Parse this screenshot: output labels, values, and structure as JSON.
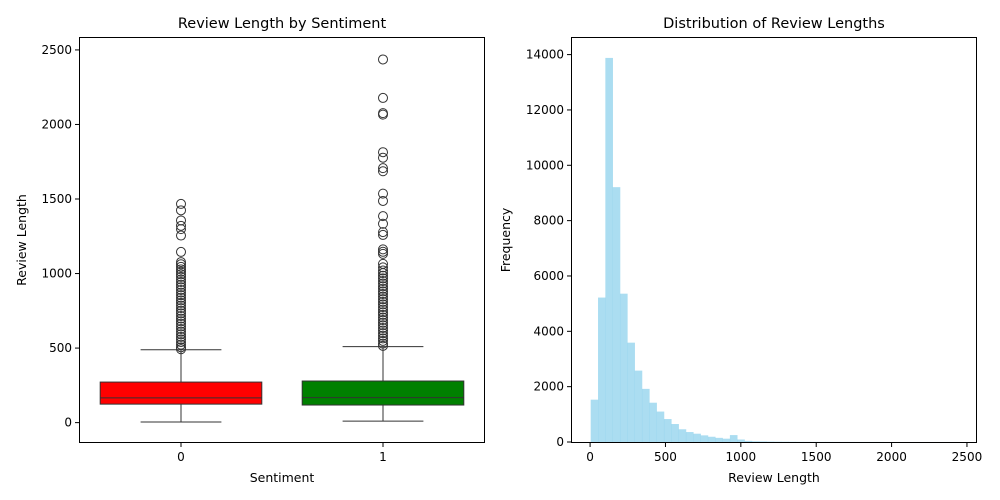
{
  "chart_data": [
    {
      "type": "box",
      "title": "Review Length by Sentiment",
      "xlabel": "Sentiment",
      "ylabel": "Review Length",
      "ylim": [
        -130,
        2580
      ],
      "yticks": [
        0,
        500,
        1000,
        1500,
        2000,
        2500
      ],
      "categories": [
        "0",
        "1"
      ],
      "boxes": [
        {
          "category": "0",
          "color": "#ff0000",
          "whisker_low": 4,
          "q1": 124,
          "median": 166,
          "q3": 272,
          "whisker_high": 489,
          "outliers": [
            1467,
            1424,
            1356,
            1320,
            1298,
            1255,
            1145,
            1077,
            1062,
            1045,
            1028,
            1012,
            995,
            978,
            960,
            943,
            925,
            908,
            890,
            872,
            855,
            838,
            820,
            803,
            785,
            768,
            750,
            733,
            715,
            698,
            680,
            663,
            645,
            628,
            610,
            593,
            575,
            558,
            540,
            523,
            505,
            492
          ]
        },
        {
          "category": "1",
          "color": "#008000",
          "whisker_low": 10,
          "q1": 118,
          "median": 168,
          "q3": 279,
          "whisker_high": 510,
          "outliers": [
            2436,
            2178,
            2076,
            2066,
            1814,
            1777,
            1707,
            1686,
            1536,
            1487,
            1385,
            1334,
            1278,
            1259,
            1162,
            1146,
            1132,
            1065,
            1041,
            1020,
            1003,
            985,
            968,
            950,
            933,
            915,
            898,
            880,
            863,
            845,
            828,
            810,
            793,
            775,
            758,
            740,
            723,
            705,
            688,
            670,
            653,
            635,
            618,
            600,
            583,
            565,
            548,
            530,
            515
          ]
        }
      ]
    },
    {
      "type": "histogram",
      "title": "Distribution of Review Lengths",
      "xlabel": "Review Length",
      "ylabel": "Frequency",
      "color": "#87ceeb",
      "xlim": [
        -120,
        2560
      ],
      "ylim": [
        0,
        14600
      ],
      "xticks": [
        0,
        500,
        1000,
        1500,
        2000,
        2500
      ],
      "yticks": [
        0,
        2000,
        4000,
        6000,
        8000,
        10000,
        12000,
        14000
      ],
      "bin_start": 4,
      "bin_width": 48.6,
      "counts": [
        1530,
        5220,
        13880,
        9210,
        5360,
        3590,
        2580,
        1920,
        1420,
        1100,
        830,
        650,
        460,
        360,
        300,
        240,
        190,
        150,
        120,
        250,
        90,
        40,
        25,
        20,
        15,
        12,
        10,
        8,
        6,
        5,
        5,
        4,
        4,
        3,
        3,
        3,
        2,
        2,
        2,
        2,
        1,
        1,
        1,
        1,
        1,
        1,
        1,
        1,
        1,
        1
      ]
    }
  ]
}
